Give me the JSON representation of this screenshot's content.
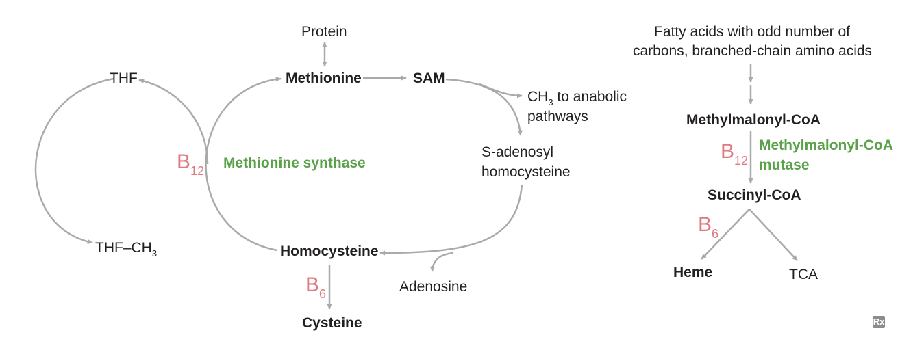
{
  "colors": {
    "arrow": "#a8aaad",
    "text": "#231f20",
    "enzyme": "#5aa24a",
    "vitamin": "#e07a82"
  },
  "left_cycle": {
    "protein": "Protein",
    "methionine": "Methionine",
    "sam": "SAM",
    "ch3_prefix": "CH",
    "ch3_sub": "3",
    "ch3_suffix": " to anabolic",
    "ch3_line2": "pathways",
    "s_adenosyl_line1": "S-adenosyl",
    "s_adenosyl_line2": "homocysteine",
    "homocysteine": "Homocysteine",
    "adenosine": "Adenosine",
    "cysteine": "Cysteine",
    "thf": "THF",
    "thf_ch3_prefix": "THF–CH",
    "thf_ch3_sub": "3",
    "b12_base": "B",
    "b12_sub": "12",
    "b6_base": "B",
    "b6_sub": "6",
    "enzyme": "Methionine synthase"
  },
  "right_pathway": {
    "source_line1": "Fatty acids with odd number of",
    "source_line2": "carbons, branched-chain amino acids",
    "methylmalonyl": "Methylmalonyl-CoA",
    "b12_base": "B",
    "b12_sub": "12",
    "enzyme_line1": "Methylmalonyl-CoA",
    "enzyme_line2": "mutase",
    "succinyl": "Succinyl-CoA",
    "b6_base": "B",
    "b6_sub": "6",
    "heme": "Heme",
    "tca": "TCA"
  },
  "logo": "Rx"
}
